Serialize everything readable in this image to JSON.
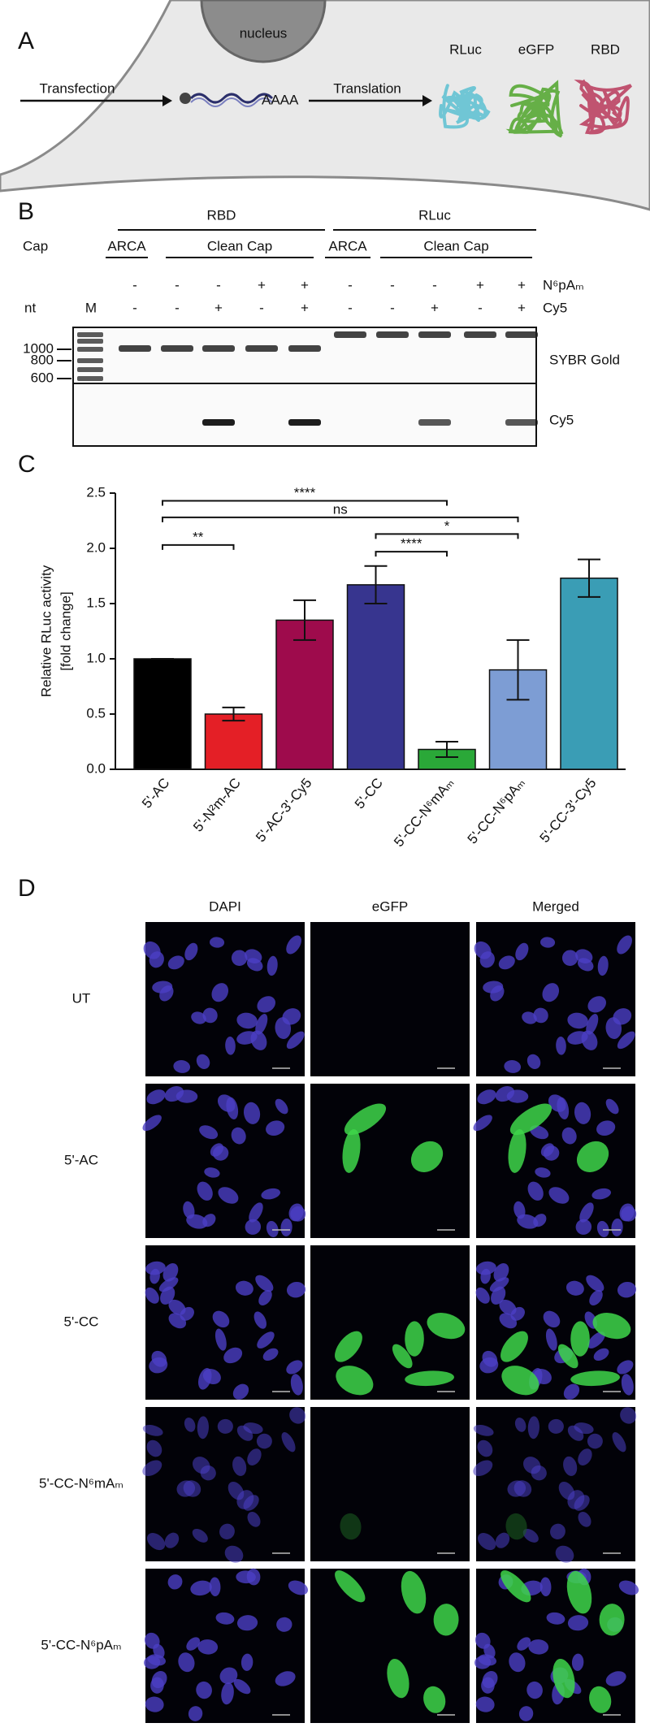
{
  "panel_a": {
    "letter": "A",
    "nucleus": "nucleus",
    "step1": "Transfection",
    "polya": "AAAA",
    "step2": "Translation",
    "proteins": [
      "RLuc",
      "eGFP",
      "RBD"
    ]
  },
  "panel_b": {
    "letter": "B",
    "groups": [
      "RBD",
      "RLuc"
    ],
    "cap_label": "Cap",
    "caps": [
      "ARCA",
      "Clean Cap",
      "ARCA",
      "Clean Cap"
    ],
    "mod_row": "N⁶pAₘ",
    "nt_label": "nt",
    "marker_lane": "M",
    "cy5_row": "Cy5",
    "mod_signs": [
      "-",
      "-",
      "-",
      "+",
      "+",
      "-",
      "-",
      "-",
      "+",
      "+"
    ],
    "cy5_signs": [
      "-",
      "-",
      "+",
      "-",
      "+",
      "-",
      "-",
      "+",
      "-",
      "+"
    ],
    "size_ladder": [
      1000,
      800,
      600
    ],
    "stains": [
      "SYBR Gold",
      "Cy5"
    ]
  },
  "chart_data": {
    "type": "bar",
    "panel_letter": "C",
    "y_label": [
      "Relative RLuc activity",
      "[fold change]"
    ],
    "categories": [
      "5'-AC",
      "5'-N²m-AC",
      "5'-AC-3'-Cy5",
      "5'-CC",
      "5'-CC-N⁶mAₘ",
      "5'-CC-N⁶pAₘ",
      "5'-CC-3'-Cy5"
    ],
    "values": [
      1.0,
      0.5,
      1.35,
      1.67,
      0.18,
      0.9,
      1.73
    ],
    "errors": [
      0,
      0.06,
      0.18,
      0.17,
      0.07,
      0.27,
      0.17
    ],
    "colors": [
      "#000000",
      "#e41f26",
      "#9e0b4c",
      "#37358f",
      "#2aa838",
      "#7d9dd4",
      "#3a9db5"
    ],
    "ylim": [
      0,
      2.5
    ],
    "yticks": [
      {
        "value": 0,
        "label": "0.0"
      },
      0.5,
      {
        "value": 1,
        "label": "1.0"
      },
      1.5,
      {
        "value": 2,
        "label": "2.0"
      },
      2.5
    ],
    "annotations": [
      {
        "label": "****",
        "between": [
          0,
          4
        ],
        "y": 2.43
      },
      {
        "label": "ns",
        "between": [
          0,
          5
        ],
        "y": 2.28
      },
      {
        "label": "*",
        "between": [
          3,
          5
        ],
        "y": 2.13
      },
      {
        "label": "**",
        "between": [
          0,
          1
        ],
        "y": 2.03
      },
      {
        "label": "****",
        "between": [
          3,
          4
        ],
        "y": 1.97
      }
    ]
  },
  "panel_d": {
    "letter": "D",
    "channels": [
      "DAPI",
      "eGFP",
      "Merged"
    ],
    "conditions": [
      "UT",
      "5'-AC",
      "5'-CC",
      "5'-CC-N⁶mAₘ",
      "5'-CC-N⁶pAₘ"
    ]
  }
}
